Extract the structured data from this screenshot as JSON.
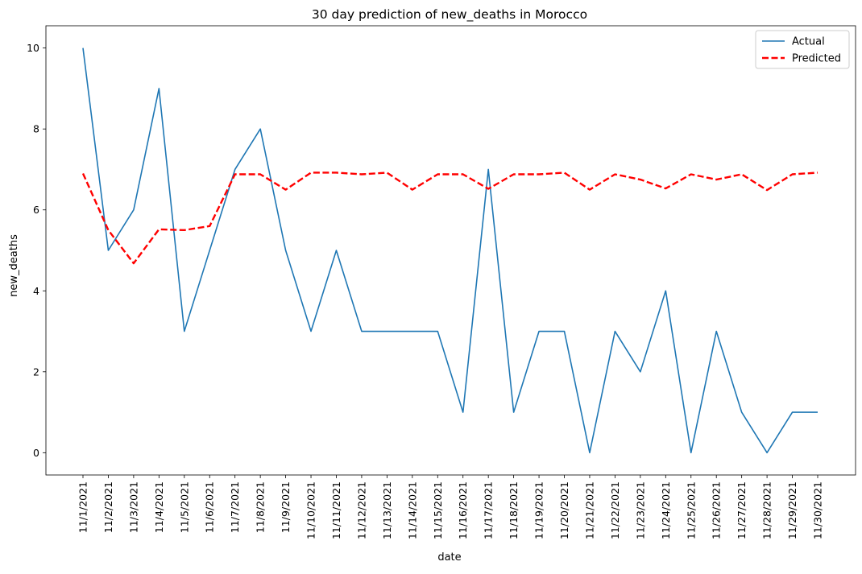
{
  "chart_data": {
    "type": "line",
    "title": "30 day prediction of new_deaths in Morocco",
    "xlabel": "date",
    "ylabel": "new_deaths",
    "x": [
      "11/1/2021",
      "11/2/2021",
      "11/3/2021",
      "11/4/2021",
      "11/5/2021",
      "11/6/2021",
      "11/7/2021",
      "11/8/2021",
      "11/9/2021",
      "11/10/2021",
      "11/11/2021",
      "11/12/2021",
      "11/13/2021",
      "11/14/2021",
      "11/15/2021",
      "11/16/2021",
      "11/17/2021",
      "11/18/2021",
      "11/19/2021",
      "11/20/2021",
      "11/21/2021",
      "11/22/2021",
      "11/23/2021",
      "11/24/2021",
      "11/25/2021",
      "11/26/2021",
      "11/27/2021",
      "11/28/2021",
      "11/29/2021",
      "11/30/2021"
    ],
    "series": [
      {
        "name": "Actual",
        "color": "#1f77b4",
        "style": "solid",
        "values": [
          10,
          5,
          6,
          9,
          3,
          5,
          7,
          8,
          5,
          3,
          5,
          3,
          3,
          3,
          3,
          1,
          7,
          1,
          3,
          3,
          0,
          3,
          2,
          4,
          0,
          3,
          1,
          0,
          1,
          1
        ]
      },
      {
        "name": "Predicted",
        "color": "#ff0000",
        "style": "dashed",
        "values": [
          6.9,
          5.5,
          4.68,
          5.52,
          5.5,
          5.6,
          6.88,
          6.88,
          6.5,
          6.92,
          6.92,
          6.88,
          6.92,
          6.5,
          6.88,
          6.88,
          6.52,
          6.88,
          6.88,
          6.92,
          6.5,
          6.88,
          6.75,
          6.53,
          6.88,
          6.75,
          6.88,
          6.49,
          6.88,
          6.92
        ]
      }
    ],
    "yticks": [
      0,
      2,
      4,
      6,
      8,
      10
    ],
    "ylim": [
      -0.55,
      10.55
    ],
    "grid": false,
    "legend_position": "top-right"
  }
}
